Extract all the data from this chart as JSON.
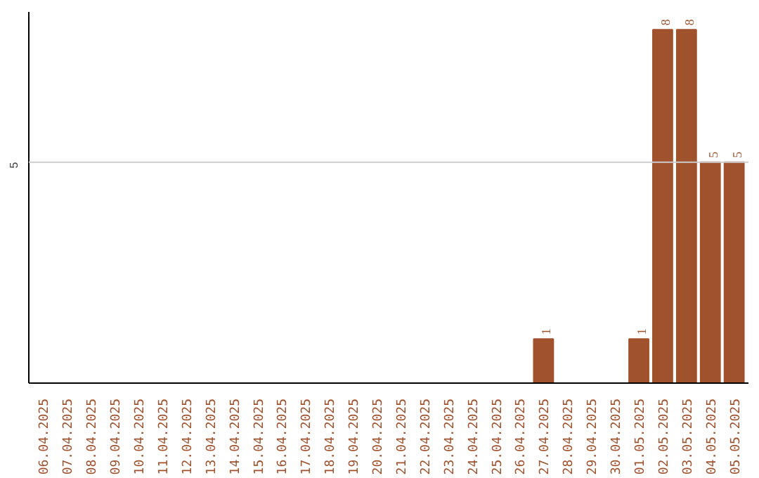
{
  "chart_data": {
    "type": "bar",
    "categories": [
      "06.04.2025",
      "07.04.2025",
      "08.04.2025",
      "09.04.2025",
      "10.04.2025",
      "11.04.2025",
      "12.04.2025",
      "13.04.2025",
      "14.04.2025",
      "15.04.2025",
      "16.04.2025",
      "17.04.2025",
      "18.04.2025",
      "19.04.2025",
      "20.04.2025",
      "21.04.2025",
      "22.04.2025",
      "23.04.2025",
      "24.04.2025",
      "25.04.2025",
      "26.04.2025",
      "27.04.2025",
      "28.04.2025",
      "29.04.2025",
      "30.04.2025",
      "01.05.2025",
      "02.05.2025",
      "03.05.2025",
      "04.05.2025",
      "05.05.2025"
    ],
    "values": [
      null,
      null,
      null,
      null,
      null,
      null,
      null,
      null,
      null,
      null,
      null,
      null,
      null,
      null,
      null,
      null,
      null,
      null,
      null,
      null,
      null,
      1,
      null,
      null,
      null,
      1,
      8,
      8,
      5,
      5
    ],
    "data_labels": true,
    "ylim": [
      0,
      8.4
    ],
    "ref_lines": [
      {
        "axis": "y",
        "value": 5,
        "label": "5",
        "color": "#cccccc"
      }
    ],
    "color": "#a0522d"
  }
}
